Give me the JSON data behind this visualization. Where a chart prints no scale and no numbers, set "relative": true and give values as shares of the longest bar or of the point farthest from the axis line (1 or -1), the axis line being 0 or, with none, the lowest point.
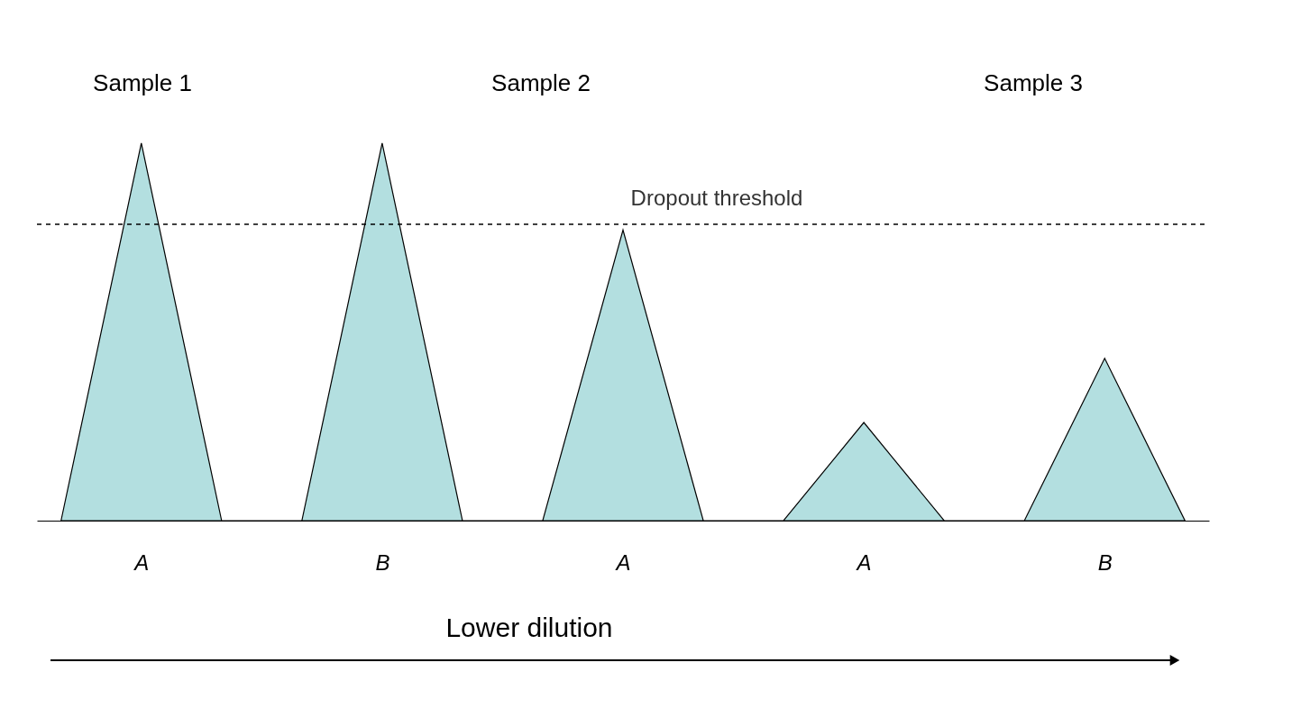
{
  "chart_data": {
    "type": "area",
    "relative": true,
    "categories": [
      null,
      "A",
      null,
      null,
      "B",
      null,
      null,
      "A",
      null,
      null,
      "A",
      null,
      null,
      "B",
      null
    ],
    "series": [
      {
        "color": "#b3dfe0",
        "values": [
          0,
          1,
          0,
          0,
          1,
          0,
          0,
          0.77,
          0,
          0,
          0.26,
          0,
          0,
          0.43,
          0
        ]
      }
    ],
    "ref_lines": [
      {
        "axis": "y",
        "value": 0.785,
        "label": "Dropout threshold",
        "line_style": "dashed",
        "color": "#000000"
      }
    ],
    "annotations": [
      "Sample 1",
      "Sample 2",
      "Sample 3",
      "Lower dilution"
    ],
    "grid": false
  }
}
